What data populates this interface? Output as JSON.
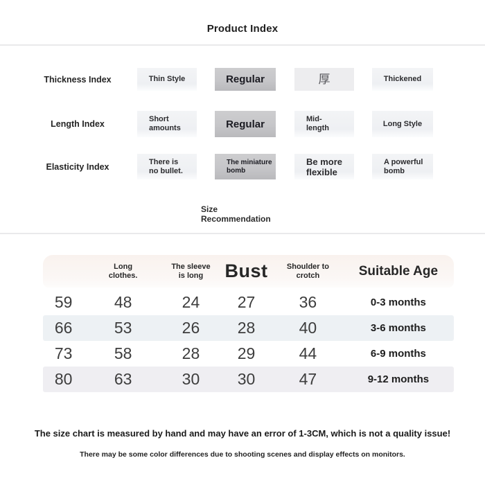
{
  "title": "Product Index",
  "index_section": {
    "rows": [
      {
        "label": "Thickness Index",
        "options": [
          {
            "label": "Thin Style",
            "state": "normal"
          },
          {
            "label": "Regular",
            "state": "selected"
          },
          {
            "label": "厚",
            "state": "thick-character"
          },
          {
            "label": "Thickened",
            "state": "normal"
          }
        ]
      },
      {
        "label": "Length Index",
        "options": [
          {
            "label": "Short\namounts",
            "state": "normal"
          },
          {
            "label": "Regular",
            "state": "selected"
          },
          {
            "label": "Mid-\nlength",
            "state": "normal"
          },
          {
            "label": "Long Style",
            "state": "normal"
          }
        ]
      },
      {
        "label": "Elasticity Index",
        "options": [
          {
            "label": "There is\nno bullet.",
            "state": "normal"
          },
          {
            "label": "The miniature\nbomb",
            "state": "selected"
          },
          {
            "label": "Be more\nflexible",
            "state": "normal"
          },
          {
            "label": "A powerful\nbomb",
            "state": "normal"
          }
        ]
      }
    ]
  },
  "size_section": {
    "heading": "Size\nRecommendation",
    "table": {
      "headers": [
        "",
        "Long\nclothes.",
        "The sleeve\nis long",
        "Bust",
        "Shoulder to\ncrotch",
        "Suitable Age"
      ],
      "rows": [
        [
          "59",
          "48",
          "24",
          "27",
          "36",
          "0-3 months"
        ],
        [
          "66",
          "53",
          "26",
          "28",
          "40",
          "3-6 months"
        ],
        [
          "73",
          "58",
          "28",
          "29",
          "44",
          "6-9 months"
        ],
        [
          "80",
          "63",
          "30",
          "30",
          "47",
          "9-12 months"
        ]
      ]
    }
  },
  "footer": {
    "note_primary": "The size chart is measured by hand and may have an error of 1-3CM, which is not a quality issue!",
    "note_secondary": "There may be some color differences due to shooting scenes and display effects on monitors."
  },
  "colors": {
    "chip_default_bg": "#f3f4f6",
    "chip_selected_bg": "#c6c6c9",
    "chip_thick_bg": "#ededef",
    "table_header_bg": "#f9f2ee",
    "row_stripe_blue": "#edf1f4",
    "row_stripe_gray": "#efeef2",
    "divider": "#e9e9eb",
    "text_dark": "#222222",
    "text_number": "#3d3d3d"
  }
}
